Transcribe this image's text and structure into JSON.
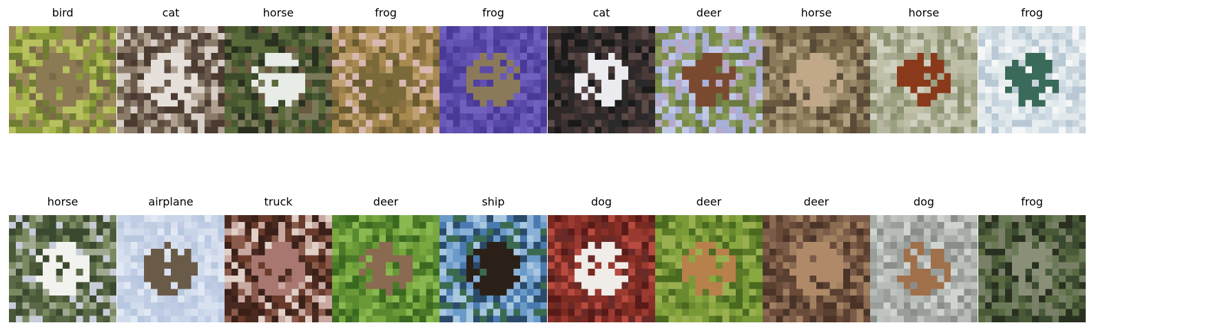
{
  "figure": {
    "rows": [
      [
        {
          "label": "bird",
          "palette": [
            "#8a9a3a",
            "#a9b74c",
            "#6f7d33",
            "#9a8a5a",
            "#7a6a48",
            "#b8c060"
          ],
          "subject": "#8c7a55"
        },
        {
          "label": "cat",
          "palette": [
            "#6b5a4a",
            "#8a7a6a",
            "#4a3a30",
            "#b0a090",
            "#d8d0c8",
            "#5a4a40"
          ],
          "subject": "#e6e0da"
        },
        {
          "label": "horse",
          "palette": [
            "#3a4a2a",
            "#5a6a3a",
            "#2a3020",
            "#6a5a40",
            "#4a5a30",
            "#7a7a5a"
          ],
          "subject": "#e8ece6"
        },
        {
          "label": "frog",
          "palette": [
            "#8a7040",
            "#a88a50",
            "#6a5a30",
            "#c0a070",
            "#d8b8b0",
            "#9a8048"
          ],
          "subject": "#7a6a3a"
        },
        {
          "label": "frog",
          "palette": [
            "#5a48a8",
            "#6a58b8",
            "#4a3a98",
            "#6050b0",
            "#7060c0",
            "#5040a0"
          ],
          "subject": "#8a7a5a"
        },
        {
          "label": "cat",
          "palette": [
            "#2a2a2a",
            "#3a3030",
            "#1a1a1a",
            "#5a4a48",
            "#4a3a38",
            "#302828"
          ],
          "subject": "#ecebf0"
        },
        {
          "label": "deer",
          "palette": [
            "#a8b0d8",
            "#c0c8e8",
            "#8a9a5a",
            "#7a8a48",
            "#b8a8c8",
            "#6a7a40"
          ],
          "subject": "#7a4a30"
        },
        {
          "label": "horse",
          "palette": [
            "#7a6a4a",
            "#9a8a6a",
            "#5a4a38",
            "#b0a080",
            "#6a5a40",
            "#8a7a5a"
          ],
          "subject": "#c0a888"
        },
        {
          "label": "horse",
          "palette": [
            "#a8a890",
            "#c0c0a8",
            "#8a9070",
            "#b8b8a0",
            "#9aa080",
            "#d0d0c0"
          ],
          "subject": "#8a3a1a"
        },
        {
          "label": "frog",
          "palette": [
            "#e8eef0",
            "#d0dce4",
            "#f4f6f8",
            "#c8d4dc",
            "#e0e8ec",
            "#b8c8d4"
          ],
          "subject": "#3a6a5a"
        }
      ],
      [
        {
          "label": "horse",
          "palette": [
            "#5a6a48",
            "#7a8a60",
            "#3a4a30",
            "#a0a890",
            "#c8ccd8",
            "#4a5a38"
          ],
          "subject": "#f2f2ee"
        },
        {
          "label": "airplane",
          "palette": [
            "#c8d4e8",
            "#d8e0f0",
            "#b8c8e0",
            "#e0e8f4",
            "#c0cce4",
            "#d0dcec"
          ],
          "subject": "#6a5a48"
        },
        {
          "label": "truck",
          "palette": [
            "#4a2a20",
            "#6a3a2a",
            "#8a5a4a",
            "#c8a8a0",
            "#e0d0c8",
            "#3a2018"
          ],
          "subject": "#a87870"
        },
        {
          "label": "deer",
          "palette": [
            "#5a8a30",
            "#7aa840",
            "#3a6a20",
            "#8ab850",
            "#4a7a28",
            "#6a9a38"
          ],
          "subject": "#8a6a50"
        },
        {
          "label": "ship",
          "palette": [
            "#6a9ac8",
            "#8ab0d8",
            "#4a7ab0",
            "#a8c8e0",
            "#3a6a50",
            "#2a4a6a"
          ],
          "subject": "#2a2018"
        },
        {
          "label": "dog",
          "palette": [
            "#7a2a20",
            "#9a3a30",
            "#5a1a18",
            "#b84a40",
            "#6a2a28",
            "#8a3028"
          ],
          "subject": "#f0ece8"
        },
        {
          "label": "deer",
          "palette": [
            "#6a8a30",
            "#8aa840",
            "#5a7a28",
            "#7a9a38",
            "#4a6a20",
            "#9ab050"
          ],
          "subject": "#b8804a"
        },
        {
          "label": "deer",
          "palette": [
            "#6a4a38",
            "#8a6a50",
            "#4a3428",
            "#a08060",
            "#5a4030",
            "#7a5a48"
          ],
          "subject": "#b08a68"
        },
        {
          "label": "dog",
          "palette": [
            "#a8aca8",
            "#c0c4c0",
            "#8a8e8a",
            "#d0d4d0",
            "#9a9e9a",
            "#b8bcb8"
          ],
          "subject": "#a0704a"
        },
        {
          "label": "frog",
          "palette": [
            "#3a4a30",
            "#5a6a40",
            "#2a3020",
            "#6a7a58",
            "#4a5a38",
            "#7a8068"
          ],
          "subject": "#8a9078"
        }
      ]
    ]
  }
}
